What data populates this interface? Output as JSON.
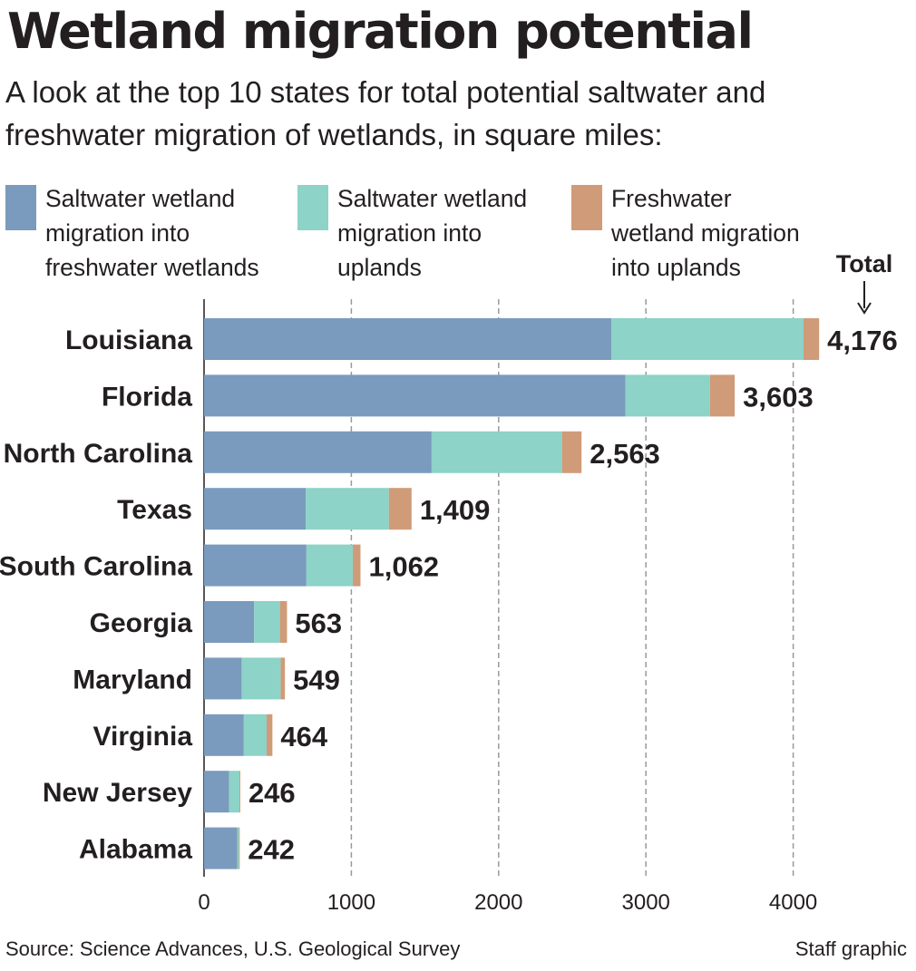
{
  "title": "Wetland migration potential",
  "subtitle": "A look at the top 10 states for total potential saltwater and freshwater migration of wetlands, in square miles:",
  "legend": [
    {
      "line1": "Saltwater wetland",
      "line2": "migration into",
      "line3": "freshwater wetlands"
    },
    {
      "line1": "Saltwater wetland",
      "line2": "migration into",
      "line3": "uplands"
    },
    {
      "line1": "Freshwater",
      "line2": "wetland migration",
      "line3": "into uplands"
    }
  ],
  "total_label": "Total",
  "total_arrow": "↓",
  "source": "Source: Science Advances, U.S. Geological Survey",
  "credit": "Staff graphic",
  "colors": {
    "saltwater_to_freshwater": "#7a9bbd",
    "saltwater_to_uplands": "#8dd3c7",
    "freshwater_to_uplands": "#d09b78",
    "gridline": "#999999",
    "text": "#231f20"
  },
  "chart_data": {
    "type": "bar",
    "orientation": "horizontal",
    "stacked": true,
    "categories": [
      "Louisiana",
      "Florida",
      "North Carolina",
      "Texas",
      "South Carolina",
      "Georgia",
      "Maryland",
      "Virginia",
      "New Jersey",
      "Alabama"
    ],
    "series": [
      {
        "name": "Saltwater wetland migration into freshwater wetlands",
        "values": [
          2765,
          2860,
          1545,
          690,
          695,
          340,
          255,
          270,
          170,
          225
        ]
      },
      {
        "name": "Saltwater wetland migration into uplands",
        "values": [
          1305,
          575,
          885,
          565,
          315,
          175,
          265,
          155,
          70,
          12
        ]
      },
      {
        "name": "Freshwater wetland migration into uplands",
        "values": [
          106,
          168,
          133,
          154,
          52,
          48,
          29,
          39,
          6,
          5
        ]
      }
    ],
    "totals": [
      4176,
      3603,
      2563,
      1409,
      1062,
      563,
      549,
      464,
      246,
      242
    ],
    "total_labels": [
      "4,176",
      "3,603",
      "2,563",
      "1,409",
      "1,062",
      "563",
      "549",
      "464",
      "246",
      "242"
    ],
    "xticks": [
      0,
      1000,
      2000,
      3000,
      4000
    ],
    "xtick_labels": [
      "0",
      "1000",
      "2000",
      "3000",
      "4000"
    ],
    "xlim": [
      0,
      4500
    ],
    "grid": true,
    "legend_position": "top"
  }
}
